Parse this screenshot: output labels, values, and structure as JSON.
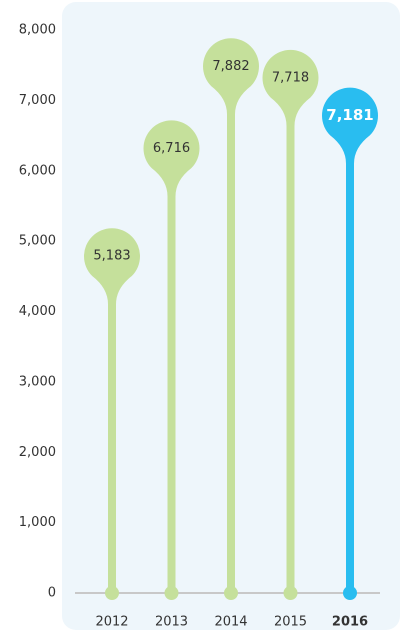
{
  "chart_data": {
    "type": "lollipop",
    "categories": [
      "2012",
      "2013",
      "2014",
      "2015",
      "2016"
    ],
    "values": [
      5183,
      6716,
      7882,
      7718,
      7181
    ],
    "value_labels": [
      "5,183",
      "6,716",
      "7,882",
      "7,718",
      "7,181"
    ],
    "colors": [
      "#c5e09b",
      "#c5e09b",
      "#c5e09b",
      "#c5e09b",
      "#29bdf0"
    ],
    "ylim": [
      0,
      8000
    ],
    "yticks": [
      0,
      {
        "value": 1000,
        "label": "1,000"
      },
      {
        "value": 2000,
        "label": "2,000"
      },
      {
        "value": 3000,
        "label": "3,000"
      },
      {
        "value": 4000,
        "label": "4,000"
      },
      {
        "value": 5000,
        "label": "5,000"
      },
      {
        "value": 6000,
        "label": "6,000"
      },
      {
        "value": 7000,
        "label": "7,000"
      },
      {
        "value": 8000,
        "label": "8,000"
      }
    ]
  }
}
